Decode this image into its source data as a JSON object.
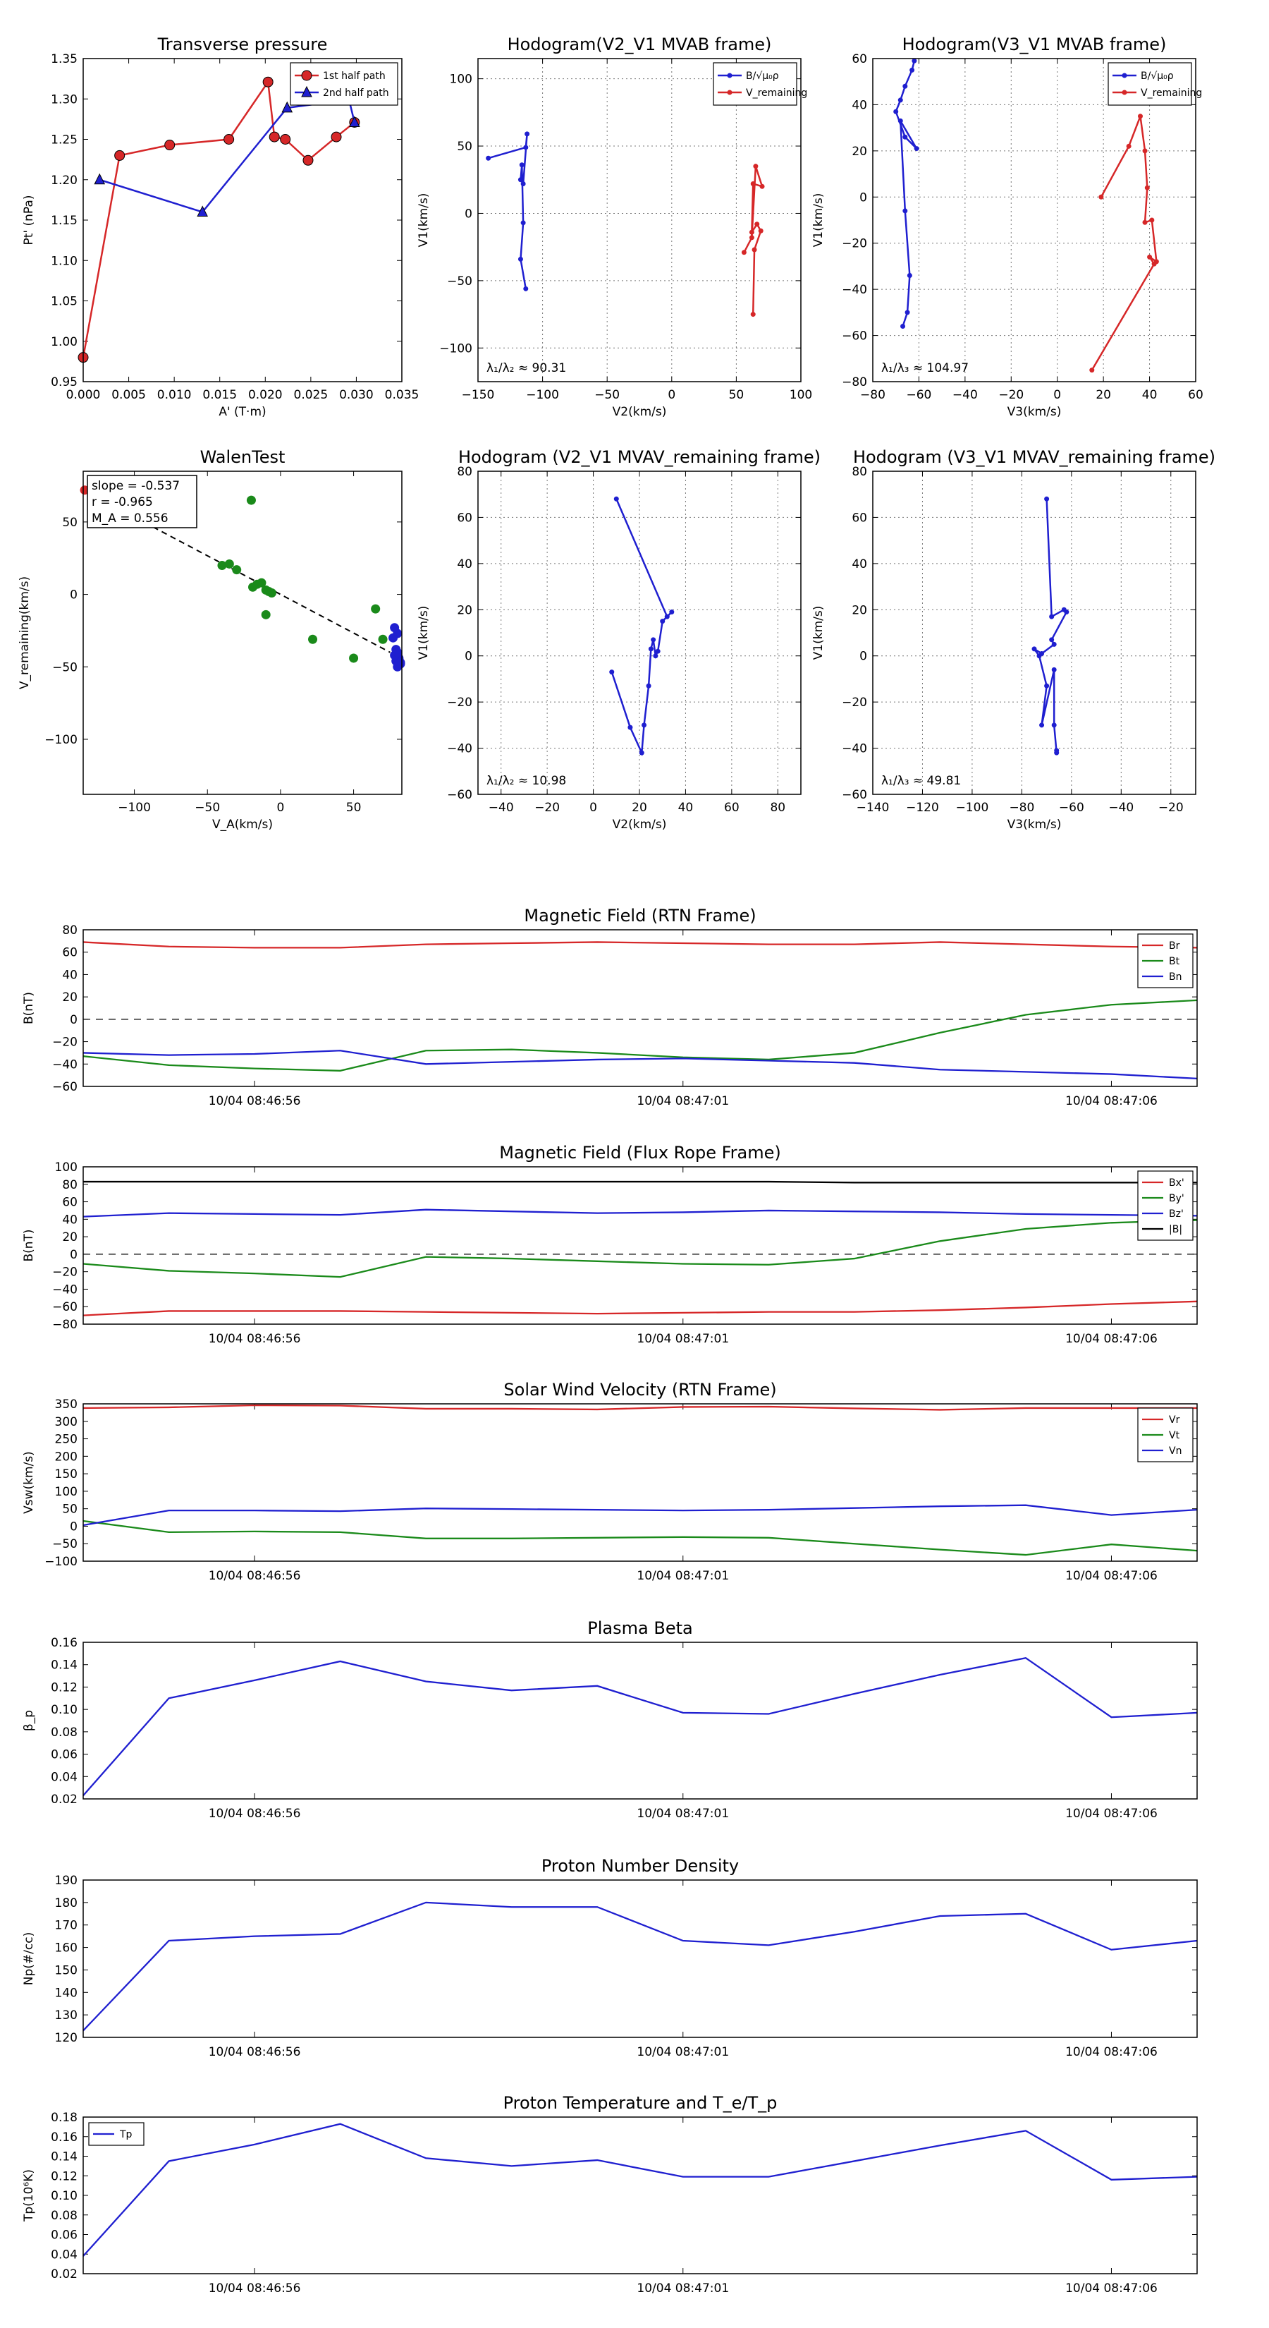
{
  "colors": {
    "red": "#d62728",
    "green": "#1a8a1a",
    "blue": "#1f1fd0",
    "black": "#000000",
    "grid": "#777777"
  },
  "chart_data": [
    {
      "id": "pt",
      "type": "line",
      "title": "Transverse pressure",
      "xlabel": "A' (T·m)",
      "ylabel": "Pt' (nPa)",
      "xlim": [
        0.0,
        0.035
      ],
      "ylim": [
        0.95,
        1.35
      ],
      "xticks": [
        "0.000",
        "0.005",
        "0.010",
        "0.015",
        "0.020",
        "0.025",
        "0.030",
        "0.035"
      ],
      "yticks": [
        "0.95",
        "1.00",
        "1.05",
        "1.10",
        "1.15",
        "1.20",
        "1.25",
        "1.30",
        "1.35"
      ],
      "grid": false,
      "legend_loc": "top-right",
      "series": [
        {
          "name": "1st half path",
          "color": "red",
          "marker": "circle",
          "x": [
            0.0,
            0.004,
            0.0095,
            0.016,
            0.0203,
            0.021,
            0.0222,
            0.0247,
            0.0278,
            0.0298
          ],
          "y": [
            0.98,
            1.23,
            1.243,
            1.25,
            1.321,
            1.253,
            1.25,
            1.224,
            1.253,
            1.271
          ]
        },
        {
          "name": "2nd half path",
          "color": "blue",
          "marker": "triangle",
          "x": [
            0.0018,
            0.0131,
            0.0224,
            0.0292,
            0.0298
          ],
          "y": [
            1.2,
            1.16,
            1.289,
            1.299,
            1.271
          ]
        }
      ]
    },
    {
      "id": "h1",
      "type": "line",
      "title": "Hodogram(V2_V1 MVAB frame)",
      "xlabel": "V2(km/s)",
      "ylabel": "V1(km/s)",
      "xlim": [
        -150,
        100
      ],
      "ylim": [
        -125,
        115
      ],
      "xticks": [
        "−150",
        "−100",
        "−50",
        "0",
        "50",
        "100"
      ],
      "yticks": [
        "−100",
        "−50",
        "0",
        "50",
        "100"
      ],
      "grid": true,
      "legend_loc": "top-right",
      "annotation": "λ₁/λ₂ ≈ 90.31",
      "series": [
        {
          "name": "B/√μ₀ρ",
          "color": "blue",
          "marker": "dot",
          "x": [
            -142,
            -113,
            -112,
            -115,
            -117,
            -116,
            -115,
            -117,
            -113
          ],
          "y": [
            41,
            49,
            59,
            22,
            25,
            36,
            -7,
            -34,
            -56
          ]
        },
        {
          "name": "V_remaining",
          "color": "red",
          "marker": "dot",
          "x": [
            56,
            62,
            65,
            70,
            63,
            62,
            66,
            69,
            64,
            63
          ],
          "y": [
            -29,
            -18,
            35,
            20,
            22,
            -14,
            -8,
            -13,
            -27,
            -75
          ]
        }
      ]
    },
    {
      "id": "h2",
      "type": "line",
      "title": "Hodogram(V3_V1 MVAB frame)",
      "xlabel": "V3(km/s)",
      "ylabel": "V1(km/s)",
      "xlim": [
        -80,
        60
      ],
      "ylim": [
        -80,
        60
      ],
      "xticks": [
        "−80",
        "−60",
        "−40",
        "−20",
        "0",
        "20",
        "40",
        "60"
      ],
      "yticks": [
        "−80",
        "−60",
        "−40",
        "−20",
        "0",
        "20",
        "40",
        "60"
      ],
      "grid": true,
      "legend_loc": "top-right",
      "annotation": "λ₁/λ₃ ≈ 104.97",
      "series": [
        {
          "name": "B/√μ₀ρ",
          "color": "blue",
          "marker": "dot",
          "x": [
            -62,
            -63,
            -66,
            -68,
            -70,
            -66,
            -61,
            -68,
            -66,
            -64,
            -65,
            -67
          ],
          "y": [
            59,
            55,
            48,
            42,
            37,
            26,
            21,
            33,
            -6,
            -34,
            -50,
            -56
          ]
        },
        {
          "name": "V_remaining",
          "color": "red",
          "marker": "dot",
          "x": [
            19,
            31,
            36,
            38,
            39,
            38,
            41,
            43,
            40,
            42,
            15
          ],
          "y": [
            0,
            22,
            35,
            20,
            4,
            -11,
            -10,
            -28,
            -26,
            -29,
            -75
          ]
        }
      ]
    },
    {
      "id": "walen",
      "type": "scatter",
      "title": "WalenTest",
      "xlabel": "V_A(km/s)",
      "ylabel": "V_remaining(km/s)",
      "xlim": [
        -135,
        83
      ],
      "ylim": [
        -138,
        85
      ],
      "xticks": [
        "−100",
        "−50",
        "0",
        "50"
      ],
      "yticks": [
        "−100",
        "−50",
        "0",
        "50"
      ],
      "grid": false,
      "annotation": [
        "slope = -0.537",
        "r = -0.965",
        "M_A = 0.556"
      ],
      "fit": {
        "x1": -135,
        "y1": 72,
        "x2": 75,
        "y2": -40
      },
      "series": [
        {
          "name": "green",
          "color": "green",
          "x": [
            -40,
            -35,
            -30,
            -20,
            -19,
            -16,
            -13,
            -10,
            -8,
            -6,
            -10,
            22,
            50,
            65,
            70
          ],
          "y": [
            20,
            21,
            17,
            65,
            5,
            7,
            8,
            3,
            2,
            1,
            -14,
            -31,
            -44,
            -10,
            -31
          ]
        },
        {
          "name": "blue",
          "color": "blue",
          "x": [
            78,
            80,
            79,
            81,
            82,
            80,
            79,
            81,
            78,
            82,
            80,
            77
          ],
          "y": [
            -23,
            -27,
            -38,
            -44,
            -48,
            -50,
            -46,
            -45,
            -42,
            -47,
            -40,
            -30
          ]
        },
        {
          "name": "red",
          "color": "red",
          "x": [
            -134
          ],
          "y": [
            72
          ]
        }
      ]
    },
    {
      "id": "h3",
      "type": "line",
      "title": "Hodogram (V2_V1 MVAV_remaining frame)",
      "xlabel": "V2(km/s)",
      "ylabel": "V1(km/s)",
      "xlim": [
        -50,
        90
      ],
      "ylim": [
        -60,
        80
      ],
      "xticks": [
        "−40",
        "−20",
        "0",
        "20",
        "40",
        "60",
        "80"
      ],
      "yticks": [
        "−60",
        "−40",
        "−20",
        "0",
        "20",
        "40",
        "60",
        "80"
      ],
      "grid": true,
      "annotation": "λ₁/λ₂ ≈ 10.98",
      "series": [
        {
          "name": "blue",
          "color": "blue",
          "marker": "dot",
          "x": [
            10,
            32,
            34,
            30,
            28,
            27,
            26,
            25,
            24,
            22,
            21,
            16,
            8
          ],
          "y": [
            68,
            17,
            19,
            15,
            2,
            0,
            7,
            3,
            -13,
            -30,
            -42,
            -31,
            -7
          ]
        }
      ]
    },
    {
      "id": "h4",
      "type": "line",
      "title": "Hodogram (V3_V1 MVAV_remaining frame)",
      "xlabel": "V3(km/s)",
      "ylabel": "V1(km/s)",
      "xlim": [
        -140,
        -10
      ],
      "ylim": [
        -60,
        80
      ],
      "xticks": [
        "−140",
        "−120",
        "−100",
        "−80",
        "−60",
        "−40",
        "−20"
      ],
      "yticks": [
        "−60",
        "−40",
        "−20",
        "0",
        "20",
        "40",
        "60",
        "80"
      ],
      "grid": true,
      "annotation": "λ₁/λ₃ ≈ 49.81",
      "series": [
        {
          "name": "blue",
          "color": "blue",
          "marker": "dot",
          "x": [
            -70,
            -68,
            -63,
            -62,
            -68,
            -67,
            -72,
            -75,
            -73,
            -70,
            -72,
            -67,
            -67,
            -66,
            -66
          ],
          "y": [
            68,
            17,
            20,
            19,
            7,
            5,
            1,
            3,
            0,
            -13,
            -30,
            -6,
            -30,
            -42,
            -41
          ]
        }
      ]
    },
    {
      "id": "bfield",
      "type": "line",
      "title": "Magnetic Field (RTN Frame)",
      "ylabel": "B(nT)",
      "ylim": [
        -60,
        80
      ],
      "yticks": [
        "−60",
        "−40",
        "−20",
        "0",
        "20",
        "40",
        "60",
        "80"
      ],
      "x": [
        0,
        1,
        2,
        3,
        4,
        5,
        6,
        7,
        8,
        9,
        10,
        11,
        12,
        13
      ],
      "xlim": [
        0,
        13
      ],
      "xticks_pos": [
        2,
        7,
        12
      ],
      "xticks": [
        "10/04 08:46:56",
        "10/04 08:47:01",
        "10/04 08:47:06"
      ],
      "zero_line": true,
      "legend_loc": "right",
      "series": [
        {
          "name": "Br",
          "color": "red",
          "values": [
            69,
            65,
            64,
            64,
            67,
            68,
            69,
            68,
            67,
            67,
            69,
            67,
            65,
            64
          ]
        },
        {
          "name": "Bt",
          "color": "green",
          "values": [
            -33,
            -41,
            -44,
            -46,
            -28,
            -27,
            -30,
            -34,
            -36,
            -30,
            -12,
            4,
            13,
            17
          ]
        },
        {
          "name": "Bn",
          "color": "blue",
          "values": [
            -30,
            -32,
            -31,
            -28,
            -40,
            -38,
            -36,
            -35,
            -37,
            -39,
            -45,
            -47,
            -49,
            -53
          ]
        }
      ]
    },
    {
      "id": "frfield",
      "type": "line",
      "title": "Magnetic Field (Flux Rope Frame)",
      "ylabel": "B(nT)",
      "ylim": [
        -80,
        100
      ],
      "yticks": [
        "−80",
        "−60",
        "−40",
        "−20",
        "0",
        "20",
        "40",
        "60",
        "80",
        "100"
      ],
      "x": [
        0,
        1,
        2,
        3,
        4,
        5,
        6,
        7,
        8,
        9,
        10,
        11,
        12,
        13
      ],
      "xlim": [
        0,
        13
      ],
      "xticks_pos": [
        2,
        7,
        12
      ],
      "xticks": [
        "10/04 08:46:56",
        "10/04 08:47:01",
        "10/04 08:47:06"
      ],
      "zero_line": true,
      "legend_loc": "right",
      "series": [
        {
          "name": "Bx'",
          "color": "red",
          "values": [
            -70,
            -65,
            -65,
            -65,
            -66,
            -67,
            -68,
            -67,
            -66,
            -66,
            -64,
            -61,
            -57,
            -54
          ]
        },
        {
          "name": "By'",
          "color": "green",
          "values": [
            -11,
            -19,
            -22,
            -26,
            -3,
            -5,
            -8,
            -11,
            -12,
            -5,
            15,
            29,
            36,
            39
          ]
        },
        {
          "name": "Bz'",
          "color": "blue",
          "values": [
            43,
            47,
            46,
            45,
            51,
            49,
            47,
            48,
            50,
            49,
            48,
            46,
            45,
            44
          ]
        },
        {
          "name": "|B|",
          "color": "black",
          "values": [
            83,
            83,
            83,
            83,
            83,
            83,
            83,
            83,
            83,
            82,
            82,
            82,
            82,
            82
          ]
        }
      ]
    },
    {
      "id": "vsw",
      "type": "line",
      "title": "Solar Wind Velocity (RTN Frame)",
      "ylabel": "Vsw(km/s)",
      "ylim": [
        -100,
        350
      ],
      "yticks": [
        "−100",
        "−50",
        "0",
        "50",
        "100",
        "150",
        "200",
        "250",
        "300",
        "350"
      ],
      "x": [
        0,
        1,
        2,
        3,
        4,
        5,
        6,
        7,
        8,
        9,
        10,
        11,
        12,
        13
      ],
      "xlim": [
        0,
        13
      ],
      "xticks_pos": [
        2,
        7,
        12
      ],
      "xticks": [
        "10/04 08:46:56",
        "10/04 08:47:01",
        "10/04 08:47:06"
      ],
      "zero_line": false,
      "legend_loc": "right",
      "series": [
        {
          "name": "Vr",
          "color": "red",
          "values": [
            338,
            340,
            346,
            345,
            336,
            336,
            334,
            341,
            342,
            337,
            333,
            338,
            338,
            338
          ]
        },
        {
          "name": "Vt",
          "color": "green",
          "values": [
            15,
            -17,
            -15,
            -17,
            -35,
            -35,
            -33,
            -31,
            -33,
            -50,
            -67,
            -82,
            -52,
            -70
          ]
        },
        {
          "name": "Vn",
          "color": "blue",
          "values": [
            3,
            45,
            45,
            43,
            51,
            49,
            47,
            45,
            47,
            52,
            57,
            60,
            32,
            47
          ]
        }
      ]
    },
    {
      "id": "beta",
      "type": "line",
      "title": "Plasma Beta",
      "ylabel": "β_p",
      "ylim": [
        0.02,
        0.16
      ],
      "yticks": [
        "0.02",
        "0.04",
        "0.06",
        "0.08",
        "0.10",
        "0.12",
        "0.14",
        "0.16"
      ],
      "x": [
        0,
        1,
        2,
        3,
        4,
        5,
        6,
        7,
        8,
        9,
        10,
        11,
        12,
        13
      ],
      "xlim": [
        0,
        13
      ],
      "xticks_pos": [
        2,
        7,
        12
      ],
      "xticks": [
        "10/04 08:46:56",
        "10/04 08:47:01",
        "10/04 08:47:06"
      ],
      "series": [
        {
          "name": "beta",
          "color": "blue",
          "values": [
            0.023,
            0.11,
            0.126,
            0.143,
            0.125,
            0.117,
            0.121,
            0.097,
            0.096,
            0.114,
            0.131,
            0.146,
            0.093,
            0.097
          ]
        }
      ]
    },
    {
      "id": "np",
      "type": "line",
      "title": "Proton Number Density",
      "ylabel": "Np(#/cc)",
      "ylim": [
        120,
        190
      ],
      "yticks": [
        "120",
        "130",
        "140",
        "150",
        "160",
        "170",
        "180",
        "190"
      ],
      "x": [
        0,
        1,
        2,
        3,
        4,
        5,
        6,
        7,
        8,
        9,
        10,
        11,
        12,
        13
      ],
      "xlim": [
        0,
        13
      ],
      "xticks_pos": [
        2,
        7,
        12
      ],
      "xticks": [
        "10/04 08:46:56",
        "10/04 08:47:01",
        "10/04 08:47:06"
      ],
      "series": [
        {
          "name": "Np",
          "color": "blue",
          "values": [
            123,
            163,
            165,
            166,
            180,
            178,
            178,
            163,
            161,
            167,
            174,
            175,
            159,
            163
          ]
        }
      ]
    },
    {
      "id": "tp",
      "type": "line",
      "title": "Proton Temperature and T_e/T_p",
      "ylabel": "Tp(10⁶K)",
      "ylim": [
        0.02,
        0.18
      ],
      "yticks": [
        "0.02",
        "0.04",
        "0.06",
        "0.08",
        "0.10",
        "0.12",
        "0.14",
        "0.16",
        "0.18"
      ],
      "x": [
        0,
        1,
        2,
        3,
        4,
        5,
        6,
        7,
        8,
        9,
        10,
        11,
        12,
        13
      ],
      "xlim": [
        0,
        13
      ],
      "xticks_pos": [
        2,
        7,
        12
      ],
      "xticks": [
        "10/04 08:46:56",
        "10/04 08:47:01",
        "10/04 08:47:06"
      ],
      "legend_loc": "top-left",
      "series": [
        {
          "name": "Tp",
          "color": "blue",
          "values": [
            0.038,
            0.135,
            0.152,
            0.173,
            0.138,
            0.13,
            0.136,
            0.119,
            0.119,
            0.135,
            0.151,
            0.166,
            0.116,
            0.119
          ]
        }
      ]
    }
  ]
}
